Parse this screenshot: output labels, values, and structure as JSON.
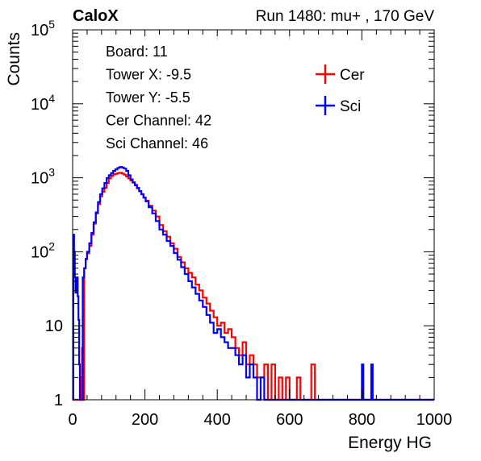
{
  "header": {
    "left_title": "CaloX",
    "right_title": "Run 1480: mu+ , 170 GeV"
  },
  "info_box": [
    "Board: 11",
    "Tower X: -9.5",
    "Tower Y: -5.5",
    "Cer Channel: 42",
    "Sci Channel: 46"
  ],
  "chart_data": {
    "type": "line",
    "title": "",
    "xlabel": "Energy HG",
    "ylabel": "Counts",
    "xlim": [
      0,
      1000
    ],
    "ylim": [
      1,
      100000
    ],
    "y_scale": "log",
    "x_ticks": [
      "0",
      "200",
      "400",
      "600",
      "800",
      "1000"
    ],
    "y_ticks": [
      {
        "base": "1",
        "exp": ""
      },
      {
        "base": "10",
        "exp": ""
      },
      {
        "base": "10",
        "exp": "2"
      },
      {
        "base": "10",
        "exp": "3"
      },
      {
        "base": "10",
        "exp": "4"
      },
      {
        "base": "10",
        "exp": "5"
      }
    ],
    "legend_position": "top-right",
    "series": [
      {
        "name": "Cer",
        "color": "#ff0000",
        "points": [
          [
            0,
            1
          ],
          [
            20,
            1
          ],
          [
            22,
            2
          ],
          [
            24,
            1
          ],
          [
            26,
            5
          ],
          [
            28,
            1
          ],
          [
            30,
            1
          ],
          [
            32,
            60
          ],
          [
            36,
            80
          ],
          [
            40,
            95
          ],
          [
            46,
            120
          ],
          [
            52,
            170
          ],
          [
            58,
            240
          ],
          [
            64,
            330
          ],
          [
            70,
            440
          ],
          [
            76,
            560
          ],
          [
            82,
            650
          ],
          [
            88,
            730
          ],
          [
            94,
            850
          ],
          [
            100,
            980
          ],
          [
            106,
            1060
          ],
          [
            112,
            1110
          ],
          [
            118,
            1130
          ],
          [
            124,
            1160
          ],
          [
            130,
            1170
          ],
          [
            136,
            1140
          ],
          [
            142,
            1100
          ],
          [
            148,
            1040
          ],
          [
            154,
            980
          ],
          [
            160,
            920
          ],
          [
            166,
            860
          ],
          [
            172,
            790
          ],
          [
            178,
            720
          ],
          [
            184,
            660
          ],
          [
            190,
            600
          ],
          [
            196,
            540
          ],
          [
            202,
            490
          ],
          [
            210,
            420
          ],
          [
            220,
            360
          ],
          [
            230,
            300
          ],
          [
            240,
            230
          ],
          [
            250,
            190
          ],
          [
            260,
            160
          ],
          [
            270,
            130
          ],
          [
            280,
            110
          ],
          [
            290,
            85
          ],
          [
            300,
            72
          ],
          [
            310,
            60
          ],
          [
            320,
            52
          ],
          [
            330,
            45
          ],
          [
            340,
            36
          ],
          [
            350,
            30
          ],
          [
            360,
            24
          ],
          [
            370,
            20
          ],
          [
            380,
            16
          ],
          [
            390,
            13
          ],
          [
            400,
            10
          ],
          [
            410,
            11
          ],
          [
            420,
            8
          ],
          [
            430,
            9
          ],
          [
            440,
            7
          ],
          [
            450,
            5
          ],
          [
            460,
            4
          ],
          [
            470,
            6
          ],
          [
            480,
            3
          ],
          [
            490,
            4
          ],
          [
            500,
            3
          ],
          [
            510,
            2
          ],
          [
            520,
            2
          ],
          [
            530,
            3
          ],
          [
            540,
            1
          ],
          [
            550,
            3
          ],
          [
            560,
            1
          ],
          [
            570,
            2
          ],
          [
            580,
            1
          ],
          [
            590,
            2
          ],
          [
            600,
            1
          ],
          [
            610,
            1
          ],
          [
            620,
            2
          ],
          [
            630,
            1
          ],
          [
            640,
            1
          ],
          [
            650,
            1
          ],
          [
            660,
            3
          ],
          [
            670,
            1
          ],
          [
            680,
            1
          ],
          [
            1000,
            1
          ]
        ]
      },
      {
        "name": "Sci",
        "color": "#0000ff",
        "points": [
          [
            0,
            1
          ],
          [
            2,
            170
          ],
          [
            4,
            100
          ],
          [
            6,
            45
          ],
          [
            8,
            28
          ],
          [
            10,
            30
          ],
          [
            12,
            45
          ],
          [
            14,
            25
          ],
          [
            16,
            12
          ],
          [
            18,
            3
          ],
          [
            20,
            1
          ],
          [
            24,
            1
          ],
          [
            28,
            45
          ],
          [
            32,
            60
          ],
          [
            36,
            80
          ],
          [
            40,
            100
          ],
          [
            46,
            130
          ],
          [
            52,
            180
          ],
          [
            58,
            250
          ],
          [
            64,
            340
          ],
          [
            70,
            470
          ],
          [
            76,
            600
          ],
          [
            82,
            720
          ],
          [
            88,
            850
          ],
          [
            94,
            990
          ],
          [
            100,
            1080
          ],
          [
            106,
            1160
          ],
          [
            112,
            1240
          ],
          [
            118,
            1300
          ],
          [
            124,
            1360
          ],
          [
            130,
            1400
          ],
          [
            136,
            1380
          ],
          [
            142,
            1330
          ],
          [
            148,
            1240
          ],
          [
            154,
            1080
          ],
          [
            160,
            950
          ],
          [
            166,
            870
          ],
          [
            172,
            800
          ],
          [
            178,
            730
          ],
          [
            184,
            660
          ],
          [
            190,
            600
          ],
          [
            196,
            540
          ],
          [
            202,
            480
          ],
          [
            210,
            400
          ],
          [
            220,
            330
          ],
          [
            230,
            260
          ],
          [
            240,
            200
          ],
          [
            250,
            170
          ],
          [
            260,
            140
          ],
          [
            270,
            120
          ],
          [
            280,
            96
          ],
          [
            290,
            78
          ],
          [
            300,
            62
          ],
          [
            310,
            50
          ],
          [
            320,
            40
          ],
          [
            330,
            33
          ],
          [
            340,
            27
          ],
          [
            350,
            22
          ],
          [
            360,
            18
          ],
          [
            370,
            14
          ],
          [
            380,
            11
          ],
          [
            390,
            8
          ],
          [
            400,
            9
          ],
          [
            410,
            7
          ],
          [
            420,
            6
          ],
          [
            430,
            5
          ],
          [
            440,
            5
          ],
          [
            450,
            4
          ],
          [
            460,
            3
          ],
          [
            470,
            4
          ],
          [
            480,
            2
          ],
          [
            490,
            3
          ],
          [
            500,
            2
          ],
          [
            510,
            1
          ],
          [
            520,
            2
          ],
          [
            530,
            1
          ],
          [
            540,
            1
          ],
          [
            550,
            1
          ],
          [
            560,
            1
          ],
          [
            570,
            1
          ],
          [
            580,
            1
          ],
          [
            780,
            1
          ],
          [
            800,
            3
          ],
          [
            804,
            1
          ],
          [
            820,
            1
          ],
          [
            826,
            3
          ],
          [
            830,
            1
          ],
          [
            1000,
            1
          ]
        ]
      }
    ]
  }
}
